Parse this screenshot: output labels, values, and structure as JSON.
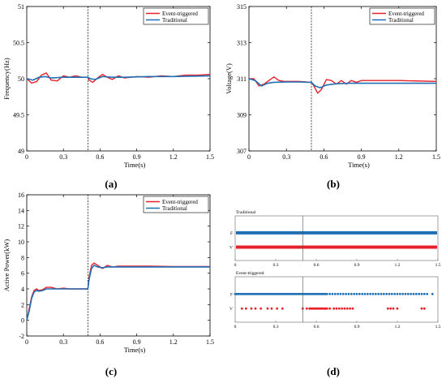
{
  "colors": {
    "event": "#e8202a",
    "traditional": "#1f6fb4",
    "axis": "#000000",
    "dashed": "#000000"
  },
  "panel_labels": [
    "(a)",
    "(b)",
    "(c)",
    "(d)"
  ],
  "chart_data": [
    {
      "id": "a",
      "type": "line",
      "xlabel": "Time(s)",
      "ylabel": "Frequency(Hz)",
      "xlim": [
        0,
        1.5
      ],
      "ylim": [
        49,
        51
      ],
      "xticks": [
        "0",
        "0.3",
        "0.6",
        "0.9",
        "1.2",
        "1.5"
      ],
      "yticks": [
        "49",
        "49.5",
        "50",
        "50.5",
        "51"
      ],
      "event_time": 0.5,
      "legend": {
        "placement": "top-right",
        "entries": [
          "Event-triggered",
          "Traditional"
        ]
      },
      "series": [
        {
          "name": "Event-triggered",
          "x": [
            0,
            0.04,
            0.08,
            0.12,
            0.16,
            0.2,
            0.25,
            0.3,
            0.35,
            0.4,
            0.45,
            0.5,
            0.51,
            0.54,
            0.58,
            0.62,
            0.66,
            0.7,
            0.75,
            0.8,
            0.85,
            0.9,
            1.0,
            1.1,
            1.2,
            1.3,
            1.4,
            1.5
          ],
          "y": [
            50,
            49.94,
            49.96,
            50.05,
            50.08,
            49.98,
            49.97,
            50.04,
            50.02,
            50.04,
            50.02,
            50.02,
            49.98,
            49.95,
            50.01,
            50.06,
            50.02,
            49.99,
            50.04,
            50.01,
            50.02,
            50.03,
            50.02,
            50.04,
            50.03,
            50.05,
            50.05,
            50.06
          ]
        },
        {
          "name": "Traditional",
          "x": [
            0,
            0.05,
            0.1,
            0.15,
            0.2,
            0.3,
            0.4,
            0.5,
            0.52,
            0.56,
            0.62,
            0.7,
            0.8,
            1.0,
            1.2,
            1.5
          ],
          "y": [
            50,
            49.98,
            50.02,
            50.03,
            50.01,
            50.02,
            50.02,
            50.02,
            50.0,
            49.99,
            50.03,
            50.02,
            50.02,
            50.03,
            50.03,
            50.04
          ]
        }
      ]
    },
    {
      "id": "b",
      "type": "line",
      "xlabel": "Time(s)",
      "ylabel": "Voltage(V)",
      "xlim": [
        0,
        1.5
      ],
      "ylim": [
        307,
        315
      ],
      "xticks": [
        "0",
        "0.3",
        "0.6",
        "0.9",
        "1.2",
        "1.5"
      ],
      "yticks": [
        "307",
        "309",
        "311",
        "313",
        "315"
      ],
      "event_time": 0.5,
      "legend": {
        "placement": "top-right",
        "entries": [
          "Event-triggered",
          "Traditional"
        ]
      },
      "series": [
        {
          "name": "Event-triggered",
          "x": [
            0,
            0.04,
            0.08,
            0.12,
            0.16,
            0.2,
            0.24,
            0.28,
            0.32,
            0.4,
            0.5,
            0.52,
            0.55,
            0.58,
            0.62,
            0.66,
            0.7,
            0.74,
            0.78,
            0.82,
            0.86,
            0.9,
            1.0,
            1.2,
            1.5
          ],
          "y": [
            311,
            311.0,
            310.6,
            310.7,
            310.9,
            311.1,
            310.9,
            310.85,
            310.85,
            310.85,
            310.8,
            310.6,
            310.2,
            310.4,
            310.95,
            310.9,
            310.7,
            310.9,
            310.7,
            310.9,
            310.8,
            310.9,
            310.9,
            310.9,
            310.85
          ]
        },
        {
          "name": "Traditional",
          "x": [
            0,
            0.05,
            0.1,
            0.15,
            0.2,
            0.3,
            0.4,
            0.5,
            0.53,
            0.57,
            0.62,
            0.7,
            0.8,
            1.0,
            1.2,
            1.5
          ],
          "y": [
            311,
            310.9,
            310.6,
            310.75,
            310.8,
            310.82,
            310.82,
            310.8,
            310.6,
            310.5,
            310.65,
            310.72,
            310.75,
            310.75,
            310.75,
            310.75
          ]
        }
      ]
    },
    {
      "id": "c",
      "type": "line",
      "xlabel": "Time(s)",
      "ylabel": "Active Power(kW)",
      "xlim": [
        0,
        1.5
      ],
      "ylim": [
        -2,
        16
      ],
      "xticks": [
        "0",
        "0.3",
        "0.6",
        "0.9",
        "1.2",
        "1.5"
      ],
      "yticks": [
        "-2",
        "0",
        "2",
        "4",
        "6",
        "8",
        "10",
        "12",
        "14",
        "16"
      ],
      "event_time": 0.5,
      "legend": {
        "placement": "top-right",
        "entries": [
          "Event-triggered",
          "Traditional"
        ]
      },
      "series": [
        {
          "name": "Event-triggered",
          "x": [
            0,
            0.02,
            0.04,
            0.06,
            0.08,
            0.1,
            0.13,
            0.16,
            0.2,
            0.25,
            0.3,
            0.35,
            0.4,
            0.45,
            0.5,
            0.51,
            0.53,
            0.55,
            0.58,
            0.62,
            0.66,
            0.7,
            0.75,
            0.8,
            0.9,
            1.0,
            1.2,
            1.5
          ],
          "y": [
            0,
            1.5,
            3.0,
            3.8,
            4.0,
            3.8,
            3.9,
            4.2,
            4.2,
            4.0,
            4.1,
            4.0,
            4.0,
            4.0,
            4.0,
            5.5,
            7.0,
            7.3,
            7.0,
            6.6,
            7.0,
            6.8,
            6.9,
            6.9,
            6.9,
            6.9,
            6.85,
            6.85
          ]
        },
        {
          "name": "Traditional",
          "x": [
            0,
            0.02,
            0.04,
            0.06,
            0.08,
            0.1,
            0.13,
            0.16,
            0.2,
            0.3,
            0.4,
            0.5,
            0.51,
            0.53,
            0.55,
            0.58,
            0.62,
            0.66,
            0.7,
            0.8,
            1.0,
            1.2,
            1.5
          ],
          "y": [
            0,
            1.2,
            2.8,
            3.6,
            3.8,
            3.7,
            3.8,
            4.0,
            4.0,
            4.0,
            4.0,
            4.0,
            5.2,
            6.6,
            7.0,
            6.8,
            6.7,
            6.8,
            6.8,
            6.8,
            6.8,
            6.8,
            6.8
          ]
        }
      ]
    },
    {
      "id": "d",
      "type": "scatter",
      "xlim": [
        0,
        1.5
      ],
      "xticks": [
        "0",
        "0.3",
        "0.6",
        "0.9",
        "1.2",
        "1.5"
      ],
      "event_time": 0.5,
      "subplots": [
        {
          "title": "Traditional",
          "rows": [
            {
              "label": "F",
              "mode": "continuous",
              "color": "#1f6fb4"
            },
            {
              "label": "V",
              "mode": "continuous",
              "color": "#e8202a"
            }
          ]
        },
        {
          "title": "Event-triggered",
          "rows": [
            {
              "label": "F",
              "mode": "points",
              "color": "#1f6fb4",
              "x": [
                0.0,
                0.01,
                0.02,
                0.03,
                0.04,
                0.05,
                0.06,
                0.07,
                0.08,
                0.09,
                0.1,
                0.11,
                0.12,
                0.13,
                0.14,
                0.15,
                0.16,
                0.17,
                0.18,
                0.19,
                0.2,
                0.21,
                0.22,
                0.23,
                0.24,
                0.25,
                0.26,
                0.27,
                0.28,
                0.29,
                0.3,
                0.31,
                0.32,
                0.33,
                0.34,
                0.35,
                0.36,
                0.37,
                0.38,
                0.39,
                0.4,
                0.41,
                0.42,
                0.43,
                0.44,
                0.45,
                0.46,
                0.47,
                0.48,
                0.49,
                0.5,
                0.51,
                0.52,
                0.53,
                0.54,
                0.55,
                0.56,
                0.57,
                0.58,
                0.59,
                0.6,
                0.61,
                0.62,
                0.63,
                0.64,
                0.65,
                0.66,
                0.67,
                0.68,
                0.7,
                0.72,
                0.74,
                0.76,
                0.78,
                0.8,
                0.82,
                0.84,
                0.86,
                0.88,
                0.9,
                0.92,
                0.94,
                0.96,
                0.98,
                1.0,
                1.02,
                1.04,
                1.06,
                1.08,
                1.1,
                1.12,
                1.14,
                1.16,
                1.18,
                1.2,
                1.22,
                1.24,
                1.26,
                1.28,
                1.3,
                1.32,
                1.34,
                1.36,
                1.38,
                1.4,
                1.42,
                1.46
              ]
            },
            {
              "label": "V",
              "mode": "points",
              "color": "#e8202a",
              "x": [
                0.05,
                0.08,
                0.12,
                0.15,
                0.19,
                0.24,
                0.27,
                0.31,
                0.35,
                0.5,
                0.53,
                0.55,
                0.56,
                0.57,
                0.58,
                0.59,
                0.6,
                0.61,
                0.62,
                0.63,
                0.64,
                0.65,
                0.66,
                0.67,
                0.68,
                0.7,
                0.73,
                0.75,
                0.77,
                0.79,
                0.81,
                0.83,
                0.85,
                0.87,
                1.13,
                1.15,
                1.17,
                1.2,
                1.38,
                1.4
              ]
            }
          ]
        }
      ]
    }
  ]
}
